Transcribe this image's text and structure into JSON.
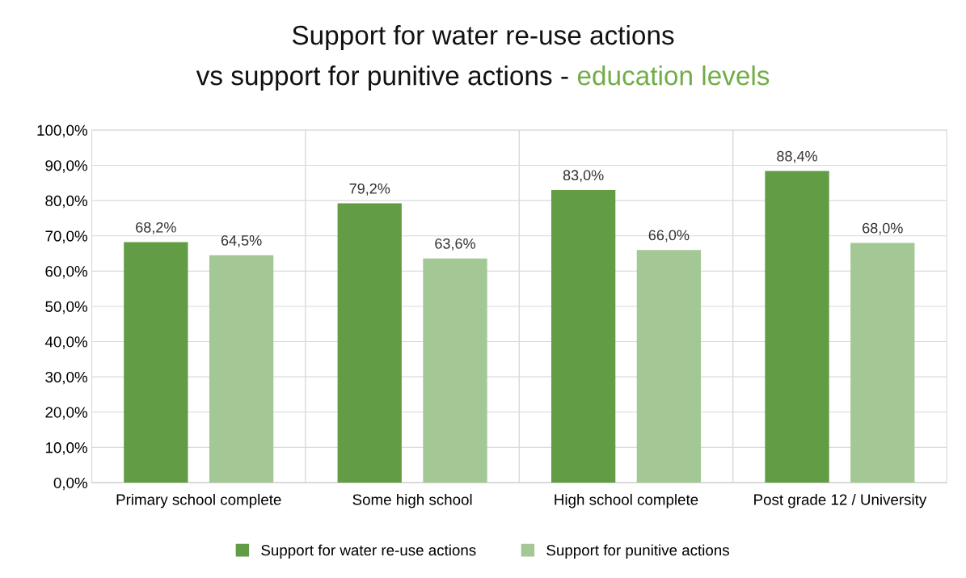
{
  "chart_data": {
    "type": "bar",
    "title": "Support for water re-use actions\nvs support for punitive actions - education levels",
    "categories": [
      "Primary school complete",
      "Some high school",
      "High school complete",
      "Post grade 12 / University"
    ],
    "series": [
      {
        "name": "Support for water re-use actions",
        "color": "#629c44",
        "values": [
          68.2,
          79.2,
          83.0,
          88.4
        ],
        "value_labels": [
          "68,2%",
          "79,2%",
          "83,0%",
          "88,4%"
        ]
      },
      {
        "name": "Support for punitive actions",
        "color": "#a3c795",
        "values": [
          64.5,
          63.6,
          66.0,
          68.0
        ],
        "value_labels": [
          "64,5%",
          "63,6%",
          "66,0%",
          "68,0%"
        ]
      }
    ],
    "ylim": [
      0,
      100
    ],
    "yticks": [
      {
        "value": 0,
        "label": "0,0%"
      },
      {
        "value": 10,
        "label": "10,0%"
      },
      {
        "value": 20,
        "label": "20,0%"
      },
      {
        "value": 30,
        "label": "30,0%"
      },
      {
        "value": 40,
        "label": "40,0%"
      },
      {
        "value": 50,
        "label": "50,0%"
      },
      {
        "value": 60,
        "label": "60,0%"
      },
      {
        "value": 70,
        "label": "70,0%"
      },
      {
        "value": 80,
        "label": "80,0%"
      },
      {
        "value": 90,
        "label": "90,0%"
      },
      {
        "value": 100,
        "label": "100,0%"
      }
    ],
    "grid": true,
    "legend": "bottom"
  }
}
